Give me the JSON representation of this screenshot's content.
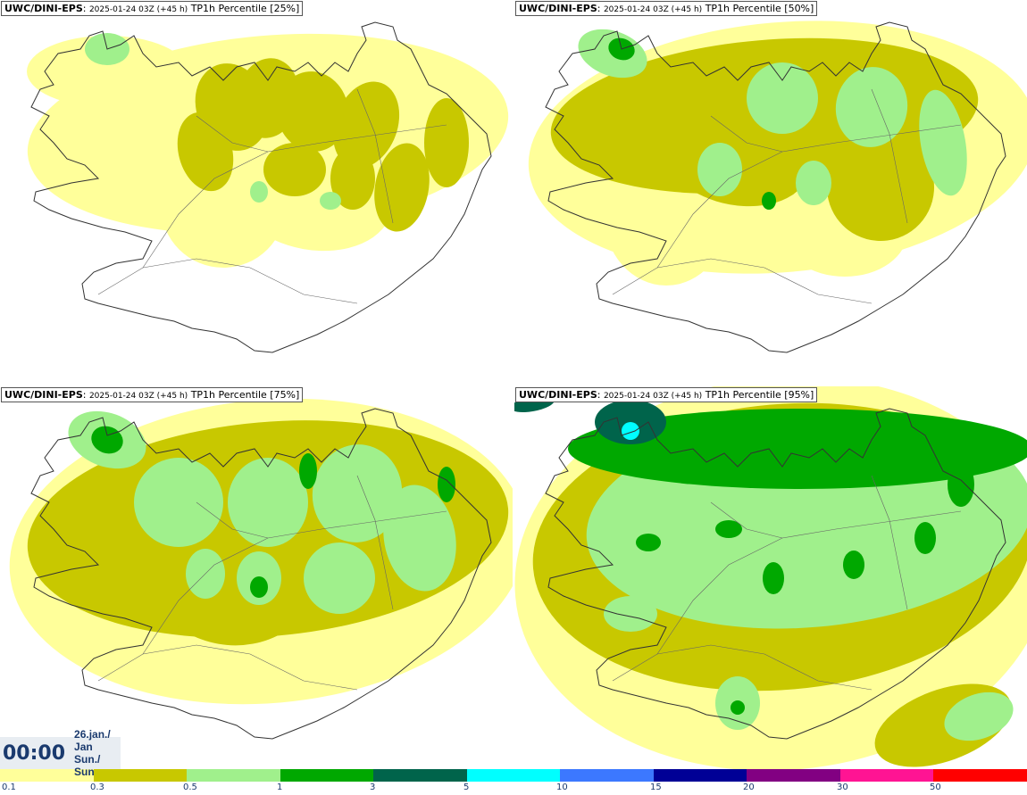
{
  "panels": [
    {
      "model": "UWC/DINI-EPS",
      "run": "2025-01-24 03Z (+45 h)",
      "field": "TP1h Percentile [25%]"
    },
    {
      "model": "UWC/DINI-EPS",
      "run": "2025-01-24 03Z (+45 h)",
      "field": "TP1h Percentile [50%]"
    },
    {
      "model": "UWC/DINI-EPS",
      "run": "2025-01-24 03Z (+45 h)",
      "field": "TP1h Percentile [75%]"
    },
    {
      "model": "UWC/DINI-EPS",
      "run": "2025-01-24 03Z (+45 h)",
      "field": "TP1h Percentile [95%]"
    }
  ],
  "valid_time": {
    "clock": "00:00",
    "date": "26.jan./ Jan",
    "day": "Sun./ Sun"
  },
  "legend": {
    "colors": [
      "#ffff9a",
      "#c8c800",
      "#a0f08c",
      "#00a800",
      "#00644b",
      "#00ffff",
      "#3c78ff",
      "#000096",
      "#820082",
      "#ff1493",
      "#ff0000"
    ],
    "labels": [
      "0.1",
      "0.3",
      "0.5",
      "1",
      "3",
      "5",
      "10",
      "15",
      "20",
      "30",
      "50"
    ]
  },
  "map_colors": {
    "background": "#ffffff",
    "coastline": "#333333"
  }
}
